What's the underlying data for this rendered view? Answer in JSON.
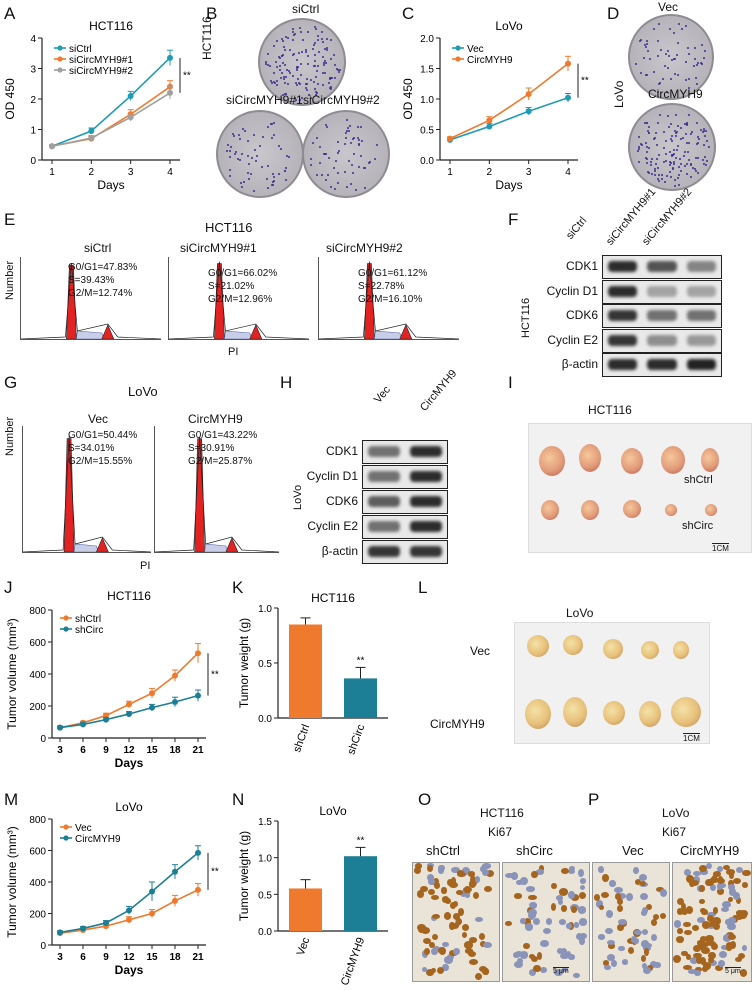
{
  "panel_letters": [
    "A",
    "B",
    "C",
    "D",
    "E",
    "F",
    "G",
    "H",
    "I",
    "J",
    "K",
    "L",
    "M",
    "N",
    "O",
    "P"
  ],
  "colors": {
    "blue": "#1f9bb5",
    "orange": "#ef7a2e",
    "gray": "#a0a0a0",
    "teal": "#1c7f96",
    "red": "#e32222"
  },
  "chart_data": [
    {
      "id": "A",
      "type": "line",
      "title": "HCT116",
      "x": [
        1,
        2,
        3,
        4
      ],
      "xlabel": "Days",
      "ylabel": "OD 450",
      "ylim": [
        0,
        4
      ],
      "yticks": [
        0,
        1,
        2,
        3,
        4
      ],
      "xticks": [
        1,
        2,
        3,
        4
      ],
      "series": [
        {
          "name": "siCtrl",
          "color": "#1f9bb5",
          "values": [
            0.45,
            0.95,
            2.1,
            3.35
          ],
          "err": [
            0.05,
            0.1,
            0.15,
            0.25
          ]
        },
        {
          "name": "siCircMYH9#1",
          "color": "#ef7a2e",
          "values": [
            0.45,
            0.7,
            1.5,
            2.4
          ],
          "err": [
            0.05,
            0.08,
            0.15,
            0.2
          ]
        },
        {
          "name": "siCircMYH9#2",
          "color": "#a0a0a0",
          "values": [
            0.45,
            0.72,
            1.4,
            2.2
          ],
          "err": [
            0.05,
            0.08,
            0.12,
            0.2
          ]
        }
      ],
      "legend": "top-left",
      "significance": "**"
    },
    {
      "id": "C",
      "type": "line",
      "title": "LoVo",
      "x": [
        1,
        2,
        3,
        4
      ],
      "xlabel": "Days",
      "ylabel": "OD 450",
      "ylim": [
        0,
        2.0
      ],
      "yticks": [
        0.0,
        0.5,
        1.0,
        1.5,
        2.0
      ],
      "xticks": [
        1,
        2,
        3,
        4
      ],
      "series": [
        {
          "name": "Vec",
          "color": "#1f9bb5",
          "values": [
            0.33,
            0.55,
            0.8,
            1.02
          ],
          "err": [
            0.03,
            0.05,
            0.06,
            0.07
          ]
        },
        {
          "name": "CircMYH9",
          "color": "#ef7a2e",
          "values": [
            0.35,
            0.65,
            1.08,
            1.58
          ],
          "err": [
            0.03,
            0.06,
            0.1,
            0.12
          ]
        }
      ],
      "legend": "top-left",
      "significance": "**"
    },
    {
      "id": "J",
      "type": "line",
      "title": "HCT116",
      "x": [
        3,
        6,
        9,
        12,
        15,
        18,
        21
      ],
      "xlabel": "Days",
      "ylabel": "Tumor volume (mm³)",
      "ylim": [
        0,
        800
      ],
      "yticks": [
        0,
        200,
        400,
        600,
        800
      ],
      "xticks": [
        3,
        6,
        9,
        12,
        15,
        18,
        21
      ],
      "series": [
        {
          "name": "shCtrl",
          "color": "#ef7a2e",
          "values": [
            65,
            95,
            140,
            210,
            280,
            390,
            530
          ],
          "err": [
            10,
            10,
            15,
            20,
            30,
            35,
            60
          ]
        },
        {
          "name": "shCirc",
          "color": "#1c7f96",
          "values": [
            65,
            85,
            115,
            150,
            190,
            225,
            265
          ],
          "err": [
            10,
            10,
            12,
            15,
            20,
            30,
            35
          ]
        }
      ],
      "legend": "top-left",
      "significance": "**"
    },
    {
      "id": "K",
      "type": "bar",
      "title": "HCT116",
      "categories": [
        "shCtrl",
        "shCirc"
      ],
      "values": [
        0.85,
        0.36
      ],
      "err": [
        0.06,
        0.1
      ],
      "colors": [
        "#ef7a2e",
        "#1c7f96"
      ],
      "ylabel": "Tumor weight (g)",
      "ylim": [
        0,
        1.0
      ],
      "yticks": [
        0.0,
        0.5,
        1.0
      ],
      "significance": "**"
    },
    {
      "id": "M",
      "type": "line",
      "title": "LoVo",
      "x": [
        3,
        6,
        9,
        12,
        15,
        18,
        21
      ],
      "xlabel": "Days",
      "ylabel": "Tumor volume (mm³)",
      "ylim": [
        0,
        800
      ],
      "yticks": [
        0,
        200,
        400,
        600,
        800
      ],
      "xticks": [
        3,
        6,
        9,
        12,
        15,
        18,
        21
      ],
      "series": [
        {
          "name": "Vec",
          "color": "#ef7a2e",
          "values": [
            75,
            95,
            120,
            160,
            200,
            280,
            350
          ],
          "err": [
            10,
            10,
            12,
            20,
            25,
            35,
            40
          ]
        },
        {
          "name": "CircMYH9",
          "color": "#1c7f96",
          "values": [
            80,
            105,
            140,
            220,
            340,
            465,
            585
          ],
          "err": [
            10,
            12,
            15,
            25,
            60,
            45,
            45
          ]
        }
      ],
      "legend": "top-left",
      "significance": "**"
    },
    {
      "id": "N",
      "type": "bar",
      "title": "LoVo",
      "categories": [
        "Vec",
        "CircMYH9"
      ],
      "values": [
        0.58,
        1.02
      ],
      "err": [
        0.12,
        0.12
      ],
      "colors": [
        "#ef7a2e",
        "#1c7f96"
      ],
      "ylabel": "Tumor weight (g)",
      "ylim": [
        0,
        1.5
      ],
      "yticks": [
        0.0,
        0.5,
        1.0,
        1.5
      ],
      "significance": "**"
    }
  ],
  "panel_b": {
    "cell": "HCT116",
    "labels": [
      "siCtrl",
      "siCircMYH9#1",
      "siCircMYH9#2"
    ]
  },
  "panel_d": {
    "cell": "LoVo",
    "labels": [
      "Vec",
      "CircMYH9"
    ]
  },
  "panel_e": {
    "cell": "HCT116",
    "xlabel": "PI",
    "ylabel": "Number",
    "plots": [
      {
        "title": "siCtrl",
        "g0g1": "G0/G1=47.83%",
        "s": "S=39.43%",
        "g2m": "G2/M=12.74%"
      },
      {
        "title": "siCircMYH9#1",
        "g0g1": "G0/G1=66.02%",
        "s": "S=21.02%",
        "g2m": "G2/M=12.96%"
      },
      {
        "title": "siCircMYH9#2",
        "g0g1": "G0/G1=61.12%",
        "s": "S=22.78%",
        "g2m": "G2/M=16.10%"
      }
    ]
  },
  "panel_f": {
    "cell": "HCT116",
    "lanes": [
      "siCtrl",
      "siCircMYH9#1",
      "siCircMYH9#2"
    ],
    "proteins": [
      "CDK1",
      "Cyclin D1",
      "CDK6",
      "Cyclin E2",
      "β-actin"
    ]
  },
  "panel_g": {
    "cell": "LoVo",
    "xlabel": "PI",
    "ylabel": "Number",
    "plots": [
      {
        "title": "Vec",
        "g0g1": "G0/G1=50.44%",
        "s": "S=34.01%",
        "g2m": "G2/M=15.55%"
      },
      {
        "title": "CircMYH9",
        "g0g1": "G0/G1=43.22%",
        "s": "S=30.91%",
        "g2m": "G2/M=25.87%"
      }
    ]
  },
  "panel_h": {
    "cell": "LoVo",
    "lanes": [
      "Vec",
      "CircMYH9"
    ],
    "proteins": [
      "CDK1",
      "Cyclin D1",
      "CDK6",
      "Cyclin E2",
      "β-actin"
    ]
  },
  "panel_i": {
    "title": "HCT116",
    "rows": [
      "shCtrl",
      "shCirc"
    ],
    "scale": "1CM"
  },
  "panel_l": {
    "title": "LoVo",
    "rows": [
      "Vec",
      "CircMYH9"
    ],
    "scale": "1CM"
  },
  "panel_o": {
    "title": "HCT116",
    "marker": "Ki67",
    "labels": [
      "shCtrl",
      "shCirc"
    ],
    "scale": "5 μm"
  },
  "panel_p": {
    "title": "LoVo",
    "marker": "Ki67",
    "labels": [
      "Vec",
      "CircMYH9"
    ],
    "scale": "5 μm"
  }
}
